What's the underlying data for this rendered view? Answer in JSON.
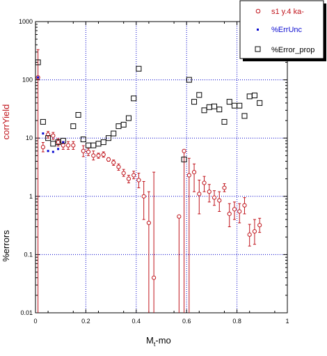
{
  "chart_data": {
    "type": "scatter",
    "title": "",
    "xlabel": {
      "main": "M",
      "sub": "t",
      "rest": "-mo"
    },
    "ylabel_top": "corrYield",
    "ylabel_bottom": "%errors",
    "xlim": [
      0,
      1
    ],
    "ylim": [
      0.01,
      1000
    ],
    "yscale": "log",
    "grid": true,
    "x_ticks": [
      "0",
      "0.2",
      "0.4",
      "0.6",
      "0.8",
      "1"
    ],
    "y_ticks": [
      "0.01",
      "0.1",
      "1",
      "10",
      "100",
      "1000"
    ],
    "legend_position": "top-right",
    "colors": {
      "s1": "#c0141c",
      "errunc": "#0a0ad0",
      "errprop": "#000000",
      "grid": "#0000cc"
    },
    "series": [
      {
        "name": "s1 y.4 ka-",
        "marker": "open-circle",
        "color": "#c0141c",
        "points": [
          {
            "x": 0.01,
            "y": 110,
            "lo": 0.01,
            "hi": 330
          },
          {
            "x": 0.03,
            "y": 7.0,
            "lo": 5.8,
            "hi": 8.4
          },
          {
            "x": 0.05,
            "y": 11.5,
            "lo": 10.0,
            "hi": 13.0
          },
          {
            "x": 0.07,
            "y": 11.0,
            "lo": 9.5,
            "hi": 12.5
          },
          {
            "x": 0.09,
            "y": 8.5,
            "lo": 7.3,
            "hi": 9.8
          },
          {
            "x": 0.11,
            "y": 7.5,
            "lo": 6.4,
            "hi": 8.7
          },
          {
            "x": 0.13,
            "y": 7.5,
            "lo": 6.4,
            "hi": 8.7
          },
          {
            "x": 0.15,
            "y": 7.5,
            "lo": 6.4,
            "hi": 8.7
          },
          {
            "x": 0.19,
            "y": 6.0,
            "lo": 4.8,
            "hi": 7.4
          },
          {
            "x": 0.21,
            "y": 5.8,
            "lo": 5.0,
            "hi": 6.7
          },
          {
            "x": 0.23,
            "y": 5.0,
            "lo": 4.2,
            "hi": 6.0
          },
          {
            "x": 0.25,
            "y": 5.0,
            "lo": 4.5,
            "hi": 5.5
          },
          {
            "x": 0.27,
            "y": 5.2,
            "lo": 4.7,
            "hi": 5.8
          },
          {
            "x": 0.29,
            "y": 4.3,
            "lo": 4.0,
            "hi": 4.6
          },
          {
            "x": 0.31,
            "y": 3.8,
            "lo": 3.4,
            "hi": 4.2
          },
          {
            "x": 0.33,
            "y": 3.2,
            "lo": 2.8,
            "hi": 3.6
          },
          {
            "x": 0.35,
            "y": 2.5,
            "lo": 2.2,
            "hi": 2.9
          },
          {
            "x": 0.37,
            "y": 2.0,
            "lo": 1.7,
            "hi": 2.3
          },
          {
            "x": 0.39,
            "y": 2.3,
            "lo": 2.0,
            "hi": 2.7
          },
          {
            "x": 0.41,
            "y": 1.9,
            "lo": 1.4,
            "hi": 2.5
          },
          {
            "x": 0.43,
            "y": 1.0,
            "lo": 0.4,
            "hi": 1.8
          },
          {
            "x": 0.45,
            "y": 0.35,
            "lo": 0.01,
            "hi": 1.2
          },
          {
            "x": 0.47,
            "y": 0.04,
            "lo": 0.01,
            "hi": 2.6
          },
          {
            "x": 0.57,
            "y": 0.45,
            "lo": 0.01,
            "hi": 0.45
          },
          {
            "x": 0.59,
            "y": 6.0,
            "lo": 0.01,
            "hi": 6.0
          },
          {
            "x": 0.61,
            "y": 2.3,
            "lo": 0.01,
            "hi": 4.5
          },
          {
            "x": 0.63,
            "y": 2.6,
            "lo": 1.2,
            "hi": 3.6
          },
          {
            "x": 0.65,
            "y": 1.1,
            "lo": 0.5,
            "hi": 1.9
          },
          {
            "x": 0.67,
            "y": 1.7,
            "lo": 1.2,
            "hi": 2.2
          },
          {
            "x": 0.69,
            "y": 1.2,
            "lo": 0.8,
            "hi": 1.6
          },
          {
            "x": 0.71,
            "y": 0.95,
            "lo": 0.7,
            "hi": 1.25
          },
          {
            "x": 0.73,
            "y": 0.85,
            "lo": 0.55,
            "hi": 1.2
          },
          {
            "x": 0.75,
            "y": 1.4,
            "lo": 1.2,
            "hi": 1.65
          },
          {
            "x": 0.77,
            "y": 0.5,
            "lo": 0.3,
            "hi": 0.75
          },
          {
            "x": 0.79,
            "y": 0.6,
            "lo": 0.4,
            "hi": 0.8
          },
          {
            "x": 0.81,
            "y": 0.55,
            "lo": 0.35,
            "hi": 0.75
          },
          {
            "x": 0.83,
            "y": 0.7,
            "lo": 0.5,
            "hi": 0.95
          },
          {
            "x": 0.85,
            "y": 0.22,
            "lo": 0.14,
            "hi": 0.33
          },
          {
            "x": 0.87,
            "y": 0.25,
            "lo": 0.15,
            "hi": 0.4
          },
          {
            "x": 0.89,
            "y": 0.32,
            "lo": 0.24,
            "hi": 0.42
          }
        ]
      },
      {
        "name": "%ErrUnc",
        "marker": "small-square",
        "color": "#0a0ad0",
        "points": [
          {
            "x": 0.01,
            "y": 110
          },
          {
            "x": 0.03,
            "y": 12
          },
          {
            "x": 0.05,
            "y": 6
          },
          {
            "x": 0.07,
            "y": 5.8
          },
          {
            "x": 0.09,
            "y": 6.5
          },
          {
            "x": 0.11,
            "y": 8.5
          }
        ]
      },
      {
        "name": "%Error_prop",
        "marker": "open-square",
        "color": "#000000",
        "points": [
          {
            "x": 0.01,
            "y": 200
          },
          {
            "x": 0.03,
            "y": 19
          },
          {
            "x": 0.05,
            "y": 10
          },
          {
            "x": 0.07,
            "y": 8
          },
          {
            "x": 0.09,
            "y": 8.5
          },
          {
            "x": 0.11,
            "y": 9
          },
          {
            "x": 0.15,
            "y": 16
          },
          {
            "x": 0.17,
            "y": 25
          },
          {
            "x": 0.19,
            "y": 9.5
          },
          {
            "x": 0.21,
            "y": 7.5
          },
          {
            "x": 0.23,
            "y": 7.5
          },
          {
            "x": 0.25,
            "y": 8
          },
          {
            "x": 0.27,
            "y": 8.5
          },
          {
            "x": 0.29,
            "y": 10
          },
          {
            "x": 0.31,
            "y": 12
          },
          {
            "x": 0.33,
            "y": 16
          },
          {
            "x": 0.35,
            "y": 17
          },
          {
            "x": 0.37,
            "y": 22
          },
          {
            "x": 0.39,
            "y": 48
          },
          {
            "x": 0.41,
            "y": 155
          },
          {
            "x": 0.59,
            "y": 4.3
          },
          {
            "x": 0.61,
            "y": 100
          },
          {
            "x": 0.63,
            "y": 42
          },
          {
            "x": 0.65,
            "y": 55
          },
          {
            "x": 0.67,
            "y": 30
          },
          {
            "x": 0.69,
            "y": 34
          },
          {
            "x": 0.71,
            "y": 35
          },
          {
            "x": 0.73,
            "y": 31
          },
          {
            "x": 0.75,
            "y": 19
          },
          {
            "x": 0.77,
            "y": 42
          },
          {
            "x": 0.79,
            "y": 36
          },
          {
            "x": 0.81,
            "y": 36
          },
          {
            "x": 0.83,
            "y": 24
          },
          {
            "x": 0.85,
            "y": 52
          },
          {
            "x": 0.87,
            "y": 54
          },
          {
            "x": 0.89,
            "y": 40
          }
        ]
      }
    ]
  }
}
